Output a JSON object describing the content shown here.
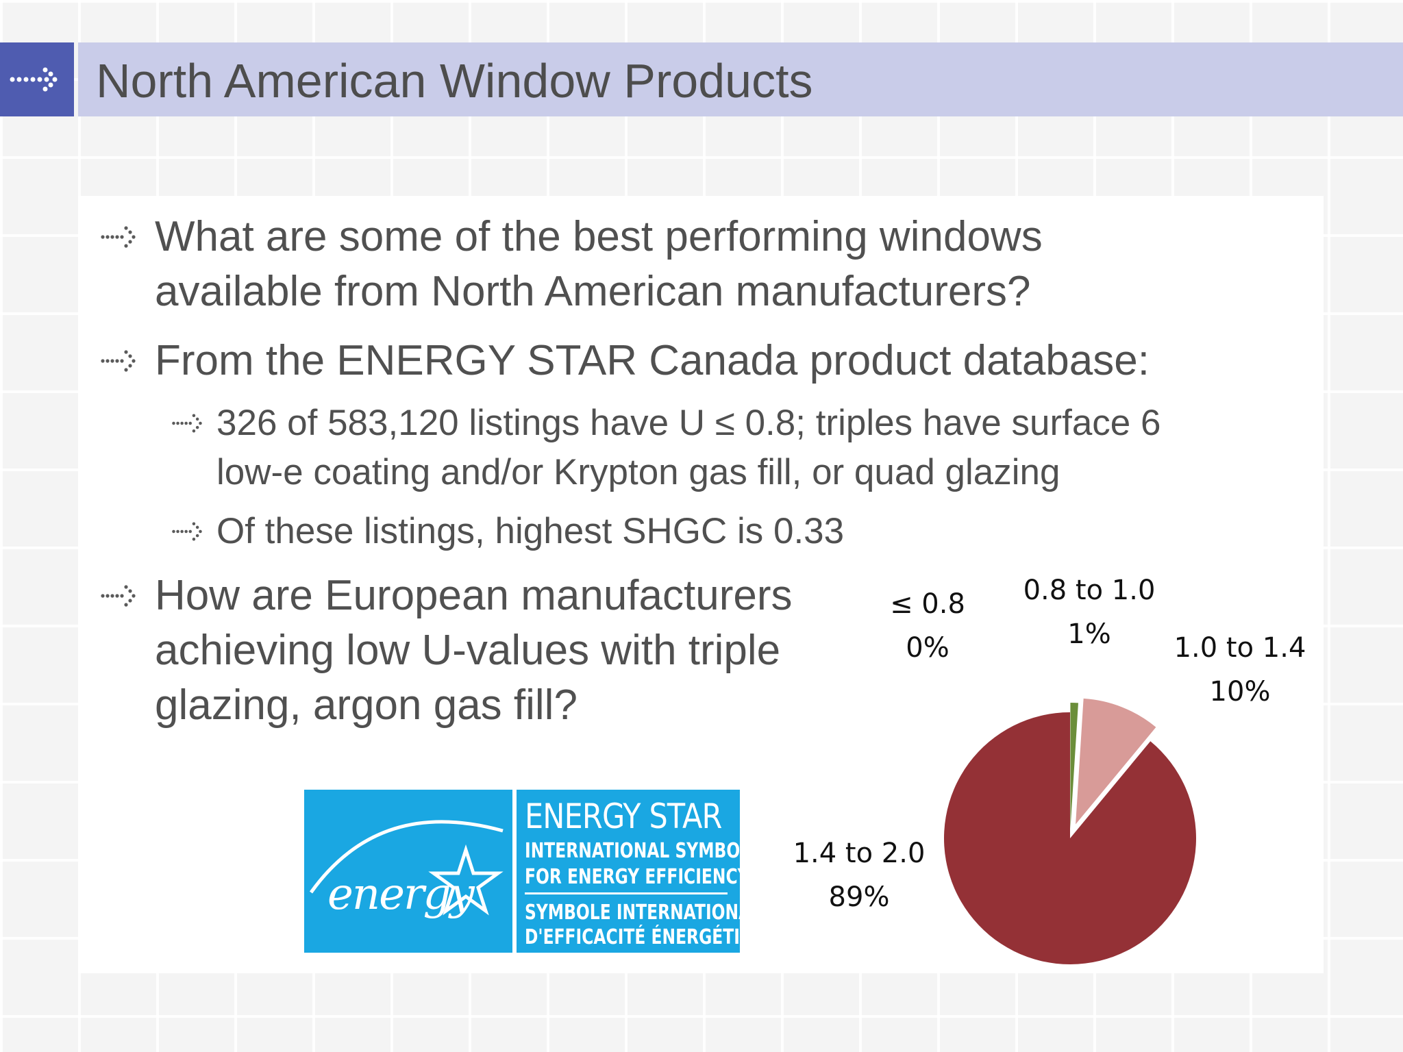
{
  "title": "North American Window Products",
  "bullets": [
    {
      "level": 1,
      "lines": [
        "What are some of the best performing windows",
        "available from North American manufacturers?"
      ]
    },
    {
      "level": 1,
      "lines": [
        "From the ENERGY STAR Canada product database:"
      ]
    },
    {
      "level": 2,
      "lines": [
        "326 of 583,120 listings have U ≤ 0.8; triples have surface 6",
        "low-e coating and/or Krypton gas fill, or quad glazing"
      ]
    },
    {
      "level": 2,
      "lines": [
        "Of these listings, highest SHGC is 0.33"
      ]
    },
    {
      "level": 1,
      "lines": [
        "How are European manufacturers",
        "achieving low U-values with triple",
        "glazing, argon gas fill?"
      ]
    }
  ],
  "logo": {
    "script": "energy",
    "title": "ENERGY STAR",
    "lines": [
      "INTERNATIONAL SYMBOL",
      "FOR ENERGY EFFICIENCY",
      "SYMBOLE INTERNATIONAL",
      "D'EFFICACITÉ ÉNERGÉTIQUE"
    ]
  },
  "chart_data": {
    "type": "pie",
    "categories": [
      "≤ 0.8",
      "0.8 to 1.0",
      "1.0 to 1.4",
      "1.4 to 2.0"
    ],
    "values": [
      0,
      1,
      10,
      89
    ],
    "value_labels": [
      "0%",
      "1%",
      "10%",
      "89%"
    ],
    "colors": [
      "#6b8e3a",
      "#6b8e3a",
      "#d89b98",
      "#943136"
    ],
    "exploded": true
  }
}
